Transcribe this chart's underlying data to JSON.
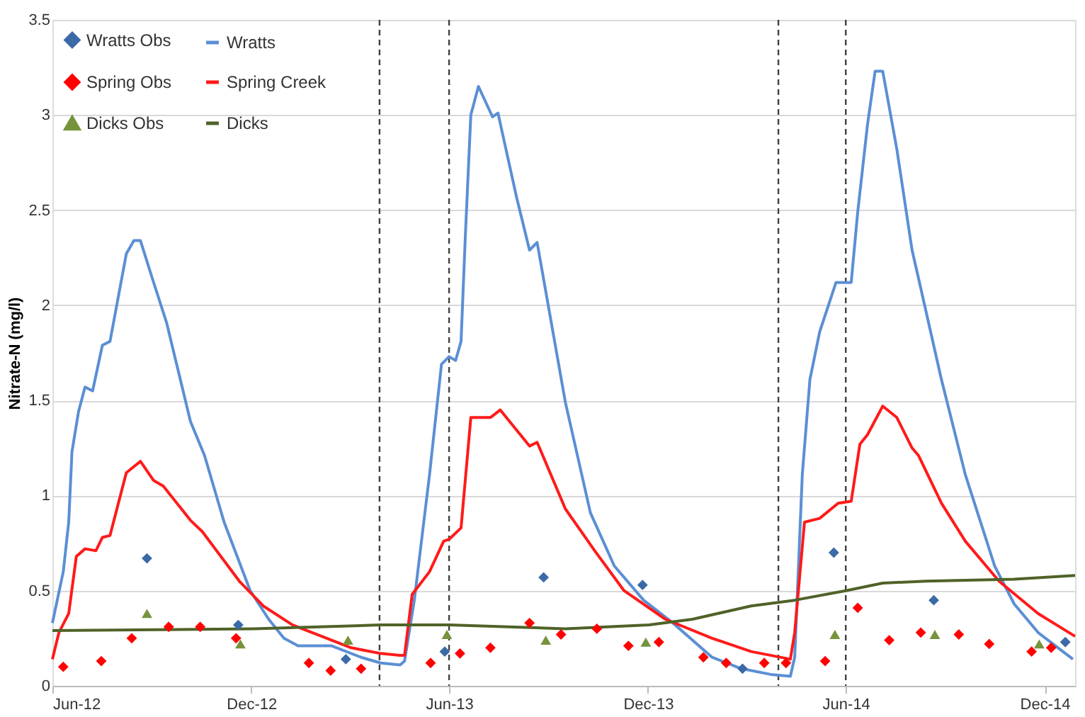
{
  "chart_data": {
    "type": "line",
    "ylabel": "Nitrate-N (mg/l)",
    "ylim": [
      0,
      3.5
    ],
    "yticks": [
      0,
      0.5,
      1,
      1.5,
      2,
      2.5,
      3,
      3.5
    ],
    "xlim": [
      "2012-06-01",
      "2014-12-29"
    ],
    "xticks": [
      {
        "value": "2012-06-01",
        "label": "Jun-12"
      },
      {
        "value": "2012-12-01",
        "label": "Dec-12"
      },
      {
        "value": "2013-06-01",
        "label": "Jun-13"
      },
      {
        "value": "2013-12-01",
        "label": "Dec-13"
      },
      {
        "value": "2014-06-01",
        "label": "Jun-14"
      },
      {
        "value": "2014-12-01",
        "label": "Dec-14"
      }
    ],
    "grid": "y",
    "legend": "top left",
    "ref_lines": [
      {
        "axis": "x",
        "value": "2013-03-29",
        "color": "#404040",
        "line_style": "dashed"
      },
      {
        "axis": "x",
        "value": "2013-06-01",
        "color": "#404040",
        "line_style": "dashed"
      },
      {
        "axis": "x",
        "value": "2014-03-31",
        "color": "#404040",
        "line_style": "dashed"
      },
      {
        "axis": "x",
        "value": "2014-06-01",
        "color": "#404040",
        "line_style": "dashed"
      }
    ],
    "series": [
      {
        "name": "Wratts Obs",
        "type": "scatter",
        "marker": "diamond",
        "color": "#3b6aa6",
        "x": [
          "2012-08-27",
          "2012-11-19",
          "2013-02-26",
          "2013-05-28",
          "2013-08-27",
          "2013-11-26",
          "2014-02-26",
          "2014-05-21",
          "2014-08-21",
          "2014-12-20"
        ],
        "values": [
          0.67,
          0.32,
          0.14,
          0.18,
          0.57,
          0.53,
          0.09,
          0.7,
          0.45,
          0.23
        ]
      },
      {
        "name": "Wratts",
        "marker": "none",
        "color": "#5b8fd4",
        "x": [
          "2012-06-01",
          "2012-06-11",
          "2012-06-16",
          "2012-06-19",
          "2012-06-25",
          "2012-07-01",
          "2012-07-08",
          "2012-07-17",
          "2012-07-24",
          "2012-08-08",
          "2012-08-15",
          "2012-08-21",
          "2012-09-01",
          "2012-09-14",
          "2012-10-06",
          "2012-10-19",
          "2012-11-06",
          "2012-11-30",
          "2012-12-17",
          "2012-12-31",
          "2013-01-13",
          "2013-02-13",
          "2013-03-12",
          "2013-03-30",
          "2013-04-17",
          "2013-04-21",
          "2013-04-30",
          "2013-05-14",
          "2013-05-25",
          "2013-06-01",
          "2013-06-07",
          "2013-06-12",
          "2013-06-16",
          "2013-06-21",
          "2013-06-28",
          "2013-07-11",
          "2013-07-16",
          "2013-08-02",
          "2013-08-14",
          "2013-08-21",
          "2013-09-16",
          "2013-10-09",
          "2013-10-31",
          "2013-11-27",
          "2013-12-24",
          "2014-01-29",
          "2014-02-25",
          "2014-03-24",
          "2014-04-11",
          "2014-04-15",
          "2014-04-22",
          "2014-04-29",
          "2014-05-08",
          "2014-05-23",
          "2014-06-06",
          "2014-06-12",
          "2014-06-21",
          "2014-06-28",
          "2014-07-05",
          "2014-07-18",
          "2014-08-01",
          "2014-08-07",
          "2014-08-28",
          "2014-09-19",
          "2014-10-16",
          "2014-11-03",
          "2014-11-25",
          "2014-12-27"
        ],
        "values": [
          0.33,
          0.6,
          0.86,
          1.23,
          1.44,
          1.57,
          1.55,
          1.79,
          1.81,
          2.27,
          2.34,
          2.34,
          2.14,
          1.91,
          1.39,
          1.21,
          0.86,
          0.5,
          0.35,
          0.25,
          0.21,
          0.21,
          0.15,
          0.12,
          0.11,
          0.13,
          0.45,
          1.11,
          1.69,
          1.73,
          1.71,
          1.81,
          2.37,
          3.0,
          3.15,
          2.99,
          3.01,
          2.57,
          2.29,
          2.33,
          1.49,
          0.91,
          0.63,
          0.45,
          0.33,
          0.15,
          0.09,
          0.06,
          0.05,
          0.15,
          1.11,
          1.61,
          1.86,
          2.12,
          2.12,
          2.49,
          2.95,
          3.23,
          3.23,
          2.82,
          2.29,
          2.14,
          1.61,
          1.11,
          0.63,
          0.43,
          0.28,
          0.14
        ]
      },
      {
        "name": "Spring Obs",
        "type": "scatter",
        "marker": "diamond",
        "color": "#ff0000",
        "x": [
          "2012-06-11",
          "2012-07-16",
          "2012-08-13",
          "2012-09-16",
          "2012-10-15",
          "2012-11-17",
          "2013-01-23",
          "2013-02-12",
          "2013-03-12",
          "2013-05-15",
          "2013-06-11",
          "2013-07-09",
          "2013-08-14",
          "2013-09-12",
          "2013-10-15",
          "2013-11-13",
          "2013-12-11",
          "2014-01-21",
          "2014-02-11",
          "2014-03-18",
          "2014-04-07",
          "2014-05-13",
          "2014-06-12",
          "2014-07-11",
          "2014-08-09",
          "2014-09-13",
          "2014-10-11",
          "2014-11-19",
          "2014-12-07"
        ],
        "values": [
          0.1,
          0.13,
          0.25,
          0.31,
          0.31,
          0.25,
          0.12,
          0.08,
          0.09,
          0.12,
          0.17,
          0.2,
          0.33,
          0.27,
          0.3,
          0.21,
          0.23,
          0.15,
          0.12,
          0.12,
          0.12,
          0.13,
          0.41,
          0.24,
          0.28,
          0.27,
          0.22,
          0.18,
          0.2
        ]
      },
      {
        "name": "Spring Creek",
        "marker": "none",
        "color": "#ff1a1a",
        "x": [
          "2012-06-01",
          "2012-06-07",
          "2012-06-16",
          "2012-06-23",
          "2012-07-01",
          "2012-07-11",
          "2012-07-17",
          "2012-07-24",
          "2012-08-08",
          "2012-08-21",
          "2012-09-02",
          "2012-09-11",
          "2012-10-06",
          "2012-10-17",
          "2012-11-20",
          "2012-12-12",
          "2013-01-08",
          "2013-01-26",
          "2013-03-03",
          "2013-03-30",
          "2013-04-17",
          "2013-04-21",
          "2013-04-28",
          "2013-05-14",
          "2013-05-27",
          "2013-06-01",
          "2013-06-12",
          "2013-06-21",
          "2013-07-09",
          "2013-07-18",
          "2013-08-14",
          "2013-08-21",
          "2013-09-16",
          "2013-10-13",
          "2013-11-09",
          "2013-12-17",
          "2014-01-29",
          "2014-03-06",
          "2014-04-11",
          "2014-04-15",
          "2014-04-24",
          "2014-05-08",
          "2014-05-25",
          "2014-06-06",
          "2014-06-14",
          "2014-06-21",
          "2014-07-05",
          "2014-07-18",
          "2014-08-01",
          "2014-08-07",
          "2014-08-28",
          "2014-09-19",
          "2014-10-20",
          "2014-11-25",
          "2014-12-29"
        ],
        "values": [
          0.14,
          0.28,
          0.38,
          0.68,
          0.72,
          0.71,
          0.78,
          0.79,
          1.12,
          1.18,
          1.08,
          1.05,
          0.87,
          0.81,
          0.55,
          0.42,
          0.32,
          0.28,
          0.2,
          0.17,
          0.16,
          0.16,
          0.48,
          0.6,
          0.76,
          0.77,
          0.83,
          1.41,
          1.41,
          1.45,
          1.26,
          1.28,
          0.93,
          0.71,
          0.5,
          0.35,
          0.25,
          0.18,
          0.14,
          0.28,
          0.86,
          0.88,
          0.96,
          0.97,
          1.27,
          1.32,
          1.47,
          1.41,
          1.25,
          1.21,
          0.96,
          0.76,
          0.55,
          0.38,
          0.26
        ]
      },
      {
        "name": "Dicks Obs",
        "type": "scatter",
        "marker": "triangle",
        "color": "#77933c",
        "x": [
          "2012-08-27",
          "2012-11-21",
          "2013-02-28",
          "2013-05-30",
          "2013-08-29",
          "2013-11-29",
          "2014-05-22",
          "2014-08-22",
          "2014-11-26"
        ],
        "values": [
          0.38,
          0.22,
          0.24,
          0.27,
          0.24,
          0.23,
          0.27,
          0.27,
          0.22
        ]
      },
      {
        "name": "Dicks",
        "marker": "none",
        "color": "#4f6228",
        "x": [
          "2012-06-01",
          "2012-12-03",
          "2013-03-30",
          "2013-06-01",
          "2013-09-16",
          "2013-12-02",
          "2014-01-11",
          "2014-03-06",
          "2014-04-15",
          "2014-06-01",
          "2014-07-05",
          "2014-08-14",
          "2014-11-03",
          "2014-12-29"
        ],
        "values": [
          0.29,
          0.3,
          0.32,
          0.32,
          0.3,
          0.32,
          0.35,
          0.42,
          0.45,
          0.5,
          0.54,
          0.55,
          0.56,
          0.58
        ]
      }
    ]
  }
}
